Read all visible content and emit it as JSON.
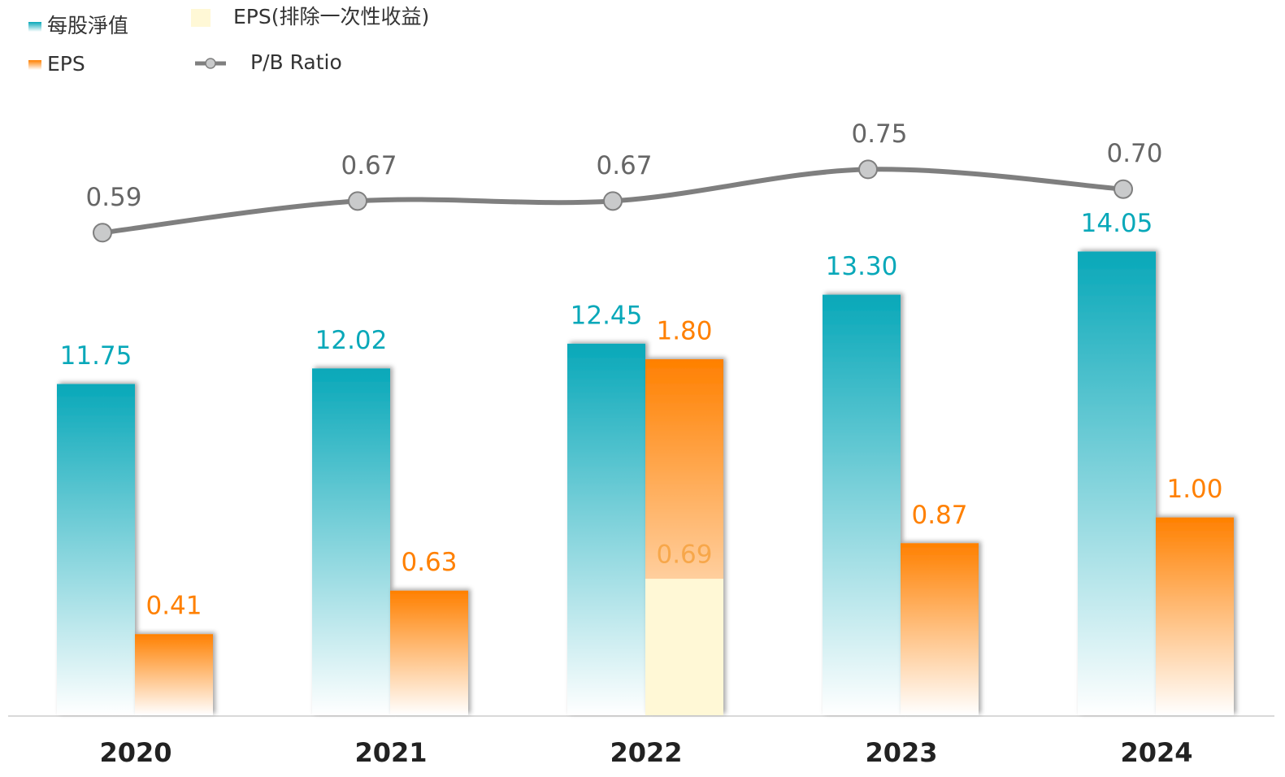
{
  "chart_data": {
    "type": "bar",
    "categories": [
      "2020",
      "2021",
      "2022",
      "2023",
      "2024"
    ],
    "ylim": [
      6,
      16.3
    ],
    "y2lim": [
      0,
      3
    ],
    "y3lim": [
      -0.63,
      0.87
    ],
    "series": [
      {
        "name": "每股淨值",
        "type": "bar",
        "color": "#08a8b9",
        "values": [
          11.75,
          12.02,
          12.45,
          13.3,
          14.05
        ],
        "value_labels": [
          "11.75",
          "12.02",
          "12.45",
          "13.30",
          "14.05"
        ]
      },
      {
        "name": "EPS",
        "type": "bar",
        "axis": "y2",
        "color": "#ff8000",
        "values": [
          0.41,
          0.63,
          1.8,
          0.87,
          1.0
        ],
        "value_labels": [
          "0.41",
          "0.63",
          "1.80",
          "0.87",
          "1.00"
        ]
      },
      {
        "name": "EPS(排除一次性收益)",
        "type": "bar",
        "axis": "y2",
        "color": "#fff8d6",
        "values": [
          null,
          null,
          0.69,
          null,
          null
        ],
        "value_labels": [
          null,
          null,
          "0.69",
          null,
          null
        ]
      },
      {
        "name": "P/B Ratio",
        "type": "line",
        "axis": "y3",
        "color": "#7f7f7f",
        "values": [
          0.59,
          0.67,
          0.67,
          0.75,
          0.7
        ],
        "value_labels": [
          "0.59",
          "0.67",
          "0.67",
          "0.75",
          "0.70"
        ]
      }
    ]
  }
}
